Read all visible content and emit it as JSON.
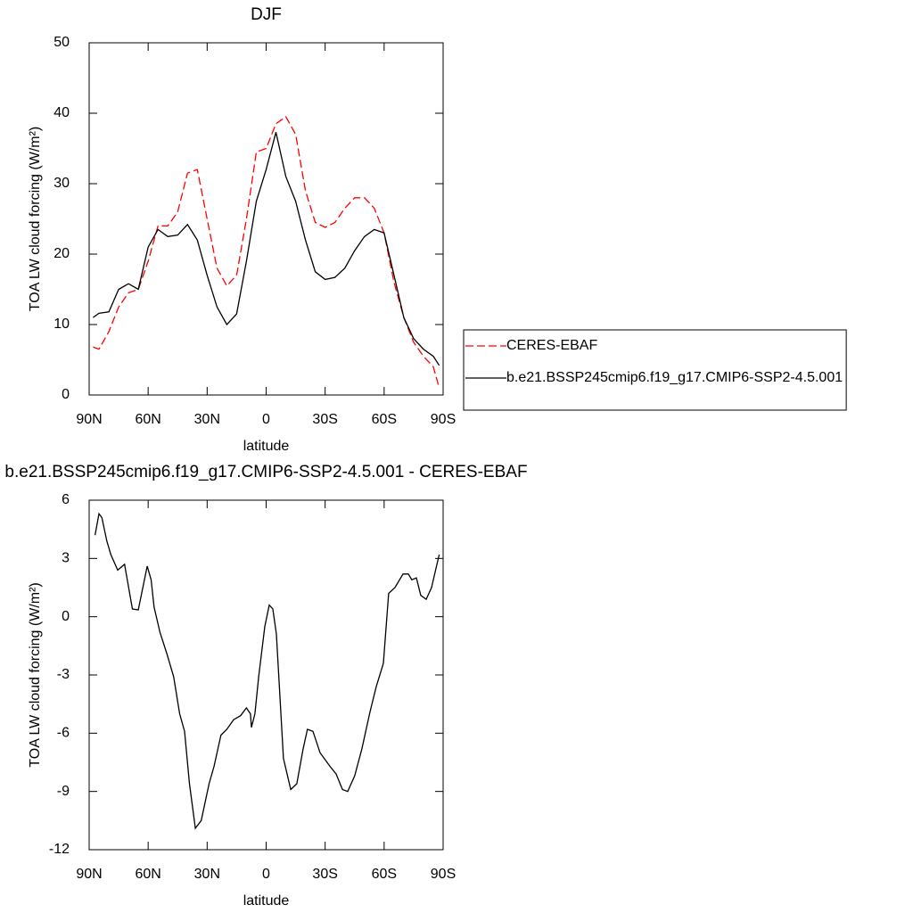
{
  "chart_data": [
    {
      "type": "line",
      "title": "DJF",
      "x_label": "latitude",
      "y_label": "TOA LW cloud forcing (W/m²)",
      "x": [
        88,
        85,
        80,
        75,
        70,
        65,
        60,
        55,
        50,
        45,
        40,
        35,
        30,
        25,
        20,
        15,
        10,
        5,
        0,
        -5,
        -10,
        -15,
        -20,
        -25,
        -30,
        -35,
        -40,
        -45,
        -50,
        -55,
        -60,
        -65,
        -70,
        -75,
        -80,
        -85,
        -88
      ],
      "series": [
        {
          "name": "CERES-EBAF",
          "color": "#ff0000",
          "dash": true,
          "values": [
            6.8,
            6.5,
            9,
            12.5,
            14.5,
            15,
            19,
            24,
            24,
            26,
            31.5,
            32,
            25,
            18,
            15.5,
            17,
            25,
            34.5,
            35,
            38.5,
            39.5,
            37,
            29,
            24.5,
            23.8,
            24.5,
            26.5,
            28,
            28,
            26.5,
            23,
            16,
            11,
            7.5,
            5.5,
            4,
            1
          ]
        },
        {
          "name": "b.e21.BSSP245cmip6.f19_g17.CMIP6-SSP2-4.5.001",
          "color": "#000000",
          "dash": false,
          "values": [
            11,
            11.6,
            11.8,
            15,
            15.8,
            15,
            21,
            23.5,
            22.5,
            22.7,
            24.2,
            22,
            17,
            12.5,
            10,
            11.5,
            19,
            27.5,
            32,
            37.3,
            31,
            27.5,
            22,
            17.5,
            16.4,
            16.7,
            18,
            20.5,
            22.5,
            23.5,
            23,
            17,
            11,
            8,
            6.5,
            5.5,
            4.2
          ]
        }
      ],
      "xlim": [
        90,
        -90
      ],
      "ylim": [
        0,
        50
      ],
      "xticks": [
        {
          "value": 90,
          "label": "90N"
        },
        {
          "value": 60,
          "label": "60N"
        },
        {
          "value": 30,
          "label": "30N"
        },
        0,
        {
          "value": -30,
          "label": "30S"
        },
        {
          "value": -60,
          "label": "60S"
        },
        {
          "value": -90,
          "label": "90S"
        }
      ],
      "yticks": [
        0,
        10,
        20,
        30,
        40,
        50
      ],
      "legend": "right"
    },
    {
      "type": "line",
      "title": "b.e21.BSSP245cmip6.f19_g17.CMIP6-SSP2-4.5.001 - CERES-EBAF",
      "x_label": "latitude",
      "y_label": "TOA LW cloud forcing (W/m²)",
      "x": [
        87,
        85,
        83.5,
        81,
        79,
        75.5,
        72,
        68,
        65,
        60.5,
        58.5,
        57,
        54,
        50.5,
        47,
        44,
        41.5,
        39,
        36,
        33,
        29,
        26.5,
        23,
        20,
        16.5,
        13,
        10,
        8,
        7.5,
        5.7,
        3.8,
        0.7,
        -1.6,
        -3.4,
        -5.2,
        -8.8,
        -12.5,
        -15.6,
        -18.8,
        -21,
        -23.8,
        -27.4,
        -32.4,
        -35.6,
        -38.8,
        -41.5,
        -45,
        -48.7,
        -52.8,
        -56,
        -59.6,
        -62.3,
        -65.5,
        -69.6,
        -72.3,
        -74.1,
        -76.4,
        -78.6,
        -81.4,
        -84.1,
        -88
      ],
      "color": "#000000",
      "values": [
        4.2,
        5.3,
        5.1,
        3.9,
        3.2,
        2.4,
        2.7,
        0.4,
        0.35,
        2.6,
        1.9,
        0.5,
        -0.8,
        -1.9,
        -3.1,
        -5,
        -5.9,
        -8.6,
        -10.9,
        -10.5,
        -8.6,
        -7.7,
        -6.1,
        -5.8,
        -5.3,
        -5.1,
        -4.7,
        -5,
        -5.7,
        -5,
        -3.1,
        -0.5,
        0.6,
        0.4,
        -0.9,
        -7.3,
        -8.9,
        -8.6,
        -6.8,
        -5.8,
        -5.9,
        -7,
        -7.7,
        -8.1,
        -8.9,
        -9,
        -8.2,
        -6.8,
        -4.9,
        -3.6,
        -2.4,
        1.2,
        1.5,
        2.2,
        2.2,
        1.9,
        2,
        1.1,
        0.9,
        1.5,
        3.2
      ],
      "xlim": [
        90,
        -90
      ],
      "ylim": [
        -12,
        6
      ],
      "xticks": [
        {
          "value": 90,
          "label": "90N"
        },
        {
          "value": 60,
          "label": "60N"
        },
        {
          "value": 30,
          "label": "30N"
        },
        0,
        {
          "value": -30,
          "label": "30S"
        },
        {
          "value": -60,
          "label": "60S"
        },
        {
          "value": -90,
          "label": "90S"
        }
      ],
      "yticks": [
        6,
        3,
        0,
        -3,
        -6,
        -9,
        -12
      ]
    }
  ]
}
